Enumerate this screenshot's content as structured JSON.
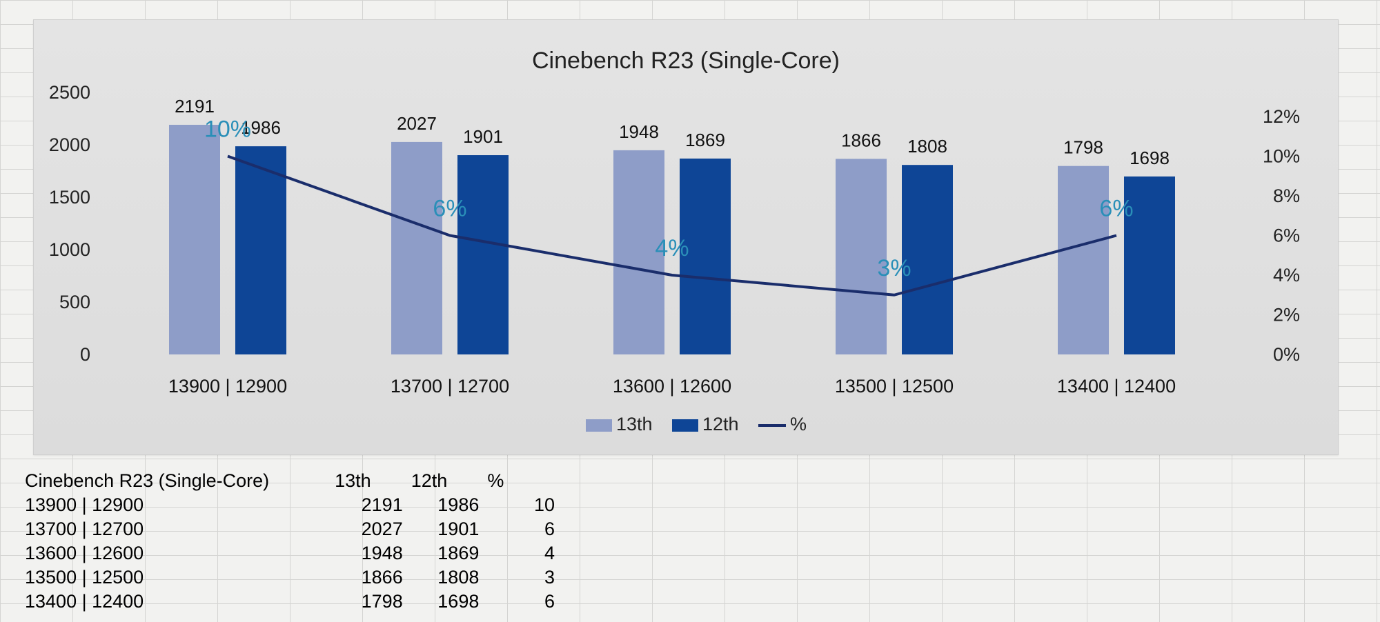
{
  "chart_data": {
    "type": "bar",
    "title": "Cinebench R23 (Single-Core)",
    "categories": [
      "13900 | 12900",
      "13700 | 12700",
      "13600 | 12600",
      "13500 | 12500",
      "13400 | 12400"
    ],
    "series": [
      {
        "name": "13th",
        "values": [
          2191,
          2027,
          1948,
          1866,
          1798
        ],
        "color": "#8e9dc8"
      },
      {
        "name": "12th",
        "values": [
          1986,
          1901,
          1869,
          1808,
          1698
        ],
        "color": "#0e4596"
      }
    ],
    "line_series": {
      "name": "%",
      "values": [
        10,
        6,
        4,
        3,
        6
      ],
      "color": "#1a2d6b",
      "label_color": "#2a8fb8"
    },
    "line_labels": [
      "10%",
      "6%",
      "4%",
      "3%",
      "6%"
    ],
    "ylim": [
      0,
      2500
    ],
    "yticks": [
      "0",
      "500",
      "1000",
      "1500",
      "2000",
      "2500"
    ],
    "y2lim": [
      0,
      12
    ],
    "y2ticks": [
      "0%",
      "2%",
      "4%",
      "6%",
      "8%",
      "10%",
      "12%"
    ],
    "legend": [
      "13th",
      "12th",
      "%"
    ],
    "legend_position": "bottom"
  },
  "table": {
    "headers": [
      "Cinebench R23 (Single-Core)",
      "13th",
      "12th",
      "%"
    ],
    "rows": [
      [
        "13900 | 12900",
        "2191",
        "1986",
        "10"
      ],
      [
        "13700 | 12700",
        "2027",
        "1901",
        "6"
      ],
      [
        "13600 | 12600",
        "1948",
        "1869",
        "4"
      ],
      [
        "13500 | 12500",
        "1866",
        "1808",
        "3"
      ],
      [
        "13400 | 12400",
        "1798",
        "1698",
        "6"
      ]
    ]
  }
}
